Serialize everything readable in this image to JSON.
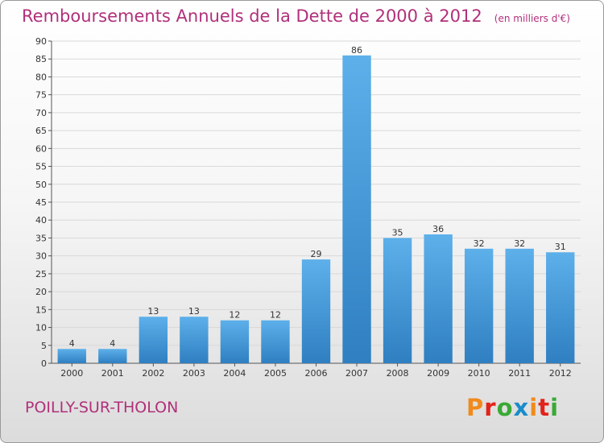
{
  "header": {
    "title": "Remboursements Annuels de la Dette de 2000 à 2012",
    "unit": "(en milliers d'€)"
  },
  "footer": {
    "commune": "POILLY-SUR-THOLON",
    "logo_text": "Proxiti",
    "logo_colors": [
      "#f08a1c",
      "#e2231a",
      "#3aa935",
      "#1a8ccb",
      "#f08a1c",
      "#e2231a",
      "#3aa935"
    ]
  },
  "colors": {
    "title": "#b0307a",
    "bar_top": "#5db0ea",
    "bar_bottom": "#2f7fc1",
    "axis": "#555555",
    "grid": "#d9d9d9"
  },
  "chart_data": {
    "type": "bar",
    "categories": [
      "2000",
      "2001",
      "2002",
      "2003",
      "2004",
      "2005",
      "2006",
      "2007",
      "2008",
      "2009",
      "2010",
      "2011",
      "2012"
    ],
    "values": [
      4,
      4,
      13,
      13,
      12,
      12,
      29,
      86,
      35,
      36,
      32,
      32,
      31
    ],
    "ylim": [
      0,
      90
    ],
    "yticks": [
      0,
      5,
      10,
      15,
      20,
      25,
      30,
      35,
      40,
      45,
      50,
      55,
      60,
      65,
      70,
      75,
      80,
      85,
      90
    ],
    "grid": true,
    "data_labels": true
  }
}
